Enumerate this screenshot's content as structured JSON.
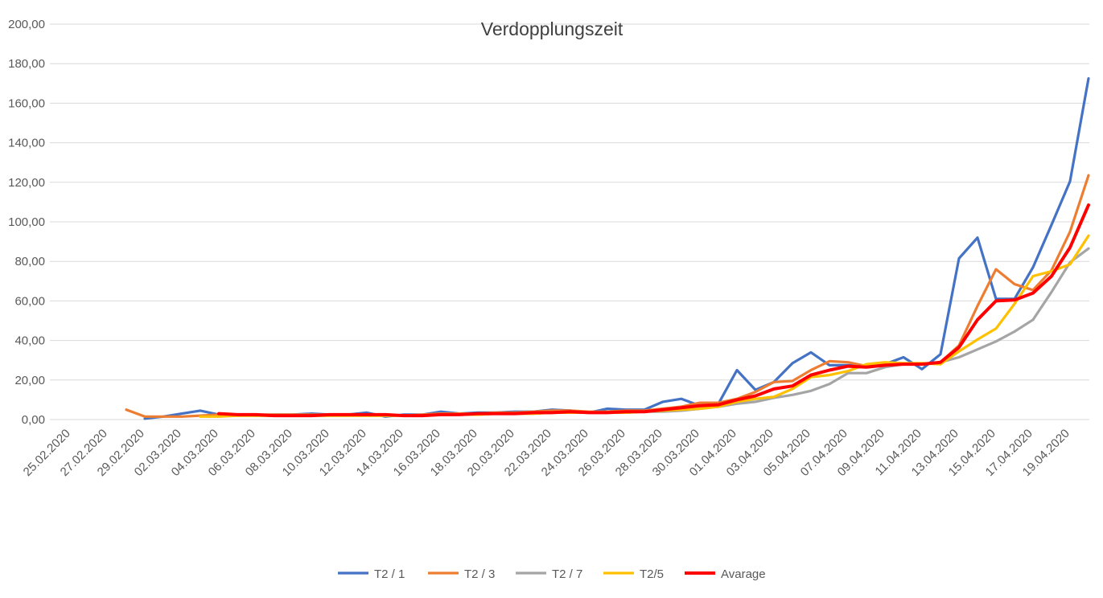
{
  "chart_data": {
    "type": "line",
    "title": "Verdopplungszeit",
    "xlabel": "",
    "ylabel": "",
    "ylim": [
      0,
      200
    ],
    "ytick_step": 20,
    "ytick_labels": [
      "0,00",
      "20,00",
      "40,00",
      "60,00",
      "80,00",
      "100,00",
      "120,00",
      "140,00",
      "160,00",
      "180,00",
      "200,00"
    ],
    "grid": true,
    "legend_position": "bottom",
    "x_tick_labels": [
      "25.02.2020",
      "27.02.2020",
      "29.02.2020",
      "02.03.2020",
      "04.03.2020",
      "06.03.2020",
      "08.03.2020",
      "10.03.2020",
      "12.03.2020",
      "14.03.2020",
      "16.03.2020",
      "18.03.2020",
      "20.03.2020",
      "22.03.2020",
      "24.03.2020",
      "26.03.2020",
      "28.03.2020",
      "30.03.2020",
      "01.04.2020",
      "03.04.2020",
      "05.04.2020",
      "07.04.2020",
      "09.04.2020",
      "11.04.2020",
      "13.04.2020",
      "15.04.2020",
      "17.04.2020",
      "19.04.2020"
    ],
    "x": [
      "25.02.2020",
      "26.02.2020",
      "27.02.2020",
      "28.02.2020",
      "29.02.2020",
      "01.03.2020",
      "02.03.2020",
      "03.03.2020",
      "04.03.2020",
      "05.03.2020",
      "06.03.2020",
      "07.03.2020",
      "08.03.2020",
      "09.03.2020",
      "10.03.2020",
      "11.03.2020",
      "12.03.2020",
      "13.03.2020",
      "14.03.2020",
      "15.03.2020",
      "16.03.2020",
      "17.03.2020",
      "18.03.2020",
      "19.03.2020",
      "20.03.2020",
      "21.03.2020",
      "22.03.2020",
      "23.03.2020",
      "24.03.2020",
      "25.03.2020",
      "26.03.2020",
      "27.03.2020",
      "28.03.2020",
      "29.03.2020",
      "30.03.2020",
      "31.03.2020",
      "01.04.2020",
      "02.04.2020",
      "03.04.2020",
      "04.04.2020",
      "05.04.2020",
      "06.04.2020",
      "07.04.2020",
      "08.04.2020",
      "09.04.2020",
      "10.04.2020",
      "11.04.2020",
      "12.04.2020",
      "13.04.2020",
      "14.04.2020",
      "15.04.2020",
      "16.04.2020",
      "17.04.2020",
      "18.04.2020",
      "19.04.2020",
      "20.04.2020"
    ],
    "series": [
      {
        "name": "T2 / 1",
        "color": "#4472C4",
        "values": [
          null,
          null,
          null,
          null,
          0.5,
          1.5,
          3.0,
          4.5,
          2.5,
          2.5,
          2.0,
          2.5,
          2.5,
          3.0,
          2.5,
          2.5,
          3.5,
          1.5,
          2.5,
          2.5,
          4.0,
          3.0,
          3.5,
          3.5,
          4.0,
          4.0,
          5.0,
          4.5,
          3.5,
          5.5,
          5.0,
          5.0,
          9.0,
          10.5,
          7.0,
          8.0,
          25.0,
          15.0,
          19.0,
          28.5,
          34.0,
          27.5,
          27.5,
          27.0,
          28.0,
          31.5,
          25.5,
          33.0,
          81.5,
          92.0,
          61.0,
          61.0,
          77.0,
          98.5,
          120.5,
          172.5
        ]
      },
      {
        "name": "T2 / 3",
        "color": "#ED7D31",
        "values": [
          null,
          null,
          null,
          5.0,
          1.5,
          1.5,
          1.5,
          2.0,
          2.5,
          2.5,
          2.5,
          2.5,
          2.5,
          2.5,
          2.5,
          2.5,
          2.5,
          2.5,
          2.0,
          2.5,
          3.0,
          3.0,
          3.0,
          3.5,
          3.5,
          4.0,
          4.5,
          4.5,
          4.0,
          4.0,
          4.5,
          4.5,
          5.5,
          6.5,
          8.5,
          8.5,
          10.5,
          14.0,
          19.0,
          19.5,
          25.0,
          29.5,
          29.0,
          27.0,
          28.0,
          28.0,
          28.0,
          29.0,
          37.5,
          57.5,
          76.0,
          68.5,
          65.5,
          75.5,
          95.0,
          123.5
        ]
      },
      {
        "name": "T2 / 7",
        "color": "#A5A5A5",
        "values": [
          null,
          null,
          null,
          null,
          null,
          null,
          null,
          null,
          null,
          2.0,
          2.0,
          2.0,
          2.0,
          2.0,
          2.0,
          2.0,
          2.0,
          2.0,
          2.0,
          2.0,
          2.5,
          2.5,
          2.5,
          3.0,
          3.0,
          3.0,
          3.5,
          3.5,
          3.5,
          3.5,
          3.5,
          4.0,
          4.0,
          4.5,
          5.5,
          6.5,
          8.0,
          9.0,
          11.0,
          12.5,
          14.5,
          18.0,
          23.5,
          23.5,
          26.5,
          28.0,
          28.0,
          29.0,
          31.5,
          35.5,
          39.5,
          44.5,
          50.5,
          64.5,
          79.5,
          86.5
        ]
      },
      {
        "name": "T2/5",
        "color": "#FFC000",
        "values": [
          null,
          null,
          null,
          null,
          null,
          null,
          null,
          1.5,
          1.5,
          2.0,
          2.0,
          2.0,
          2.0,
          2.0,
          2.0,
          2.0,
          2.0,
          2.0,
          2.0,
          2.0,
          2.5,
          2.5,
          2.5,
          3.0,
          3.0,
          3.0,
          3.5,
          3.5,
          3.5,
          3.5,
          3.5,
          4.0,
          4.5,
          5.0,
          5.5,
          6.5,
          9.0,
          10.5,
          11.5,
          15.5,
          21.5,
          22.5,
          24.5,
          28.0,
          29.0,
          28.5,
          28.5,
          28.0,
          34.5,
          40.5,
          46.0,
          58.5,
          72.5,
          75.0,
          78.5,
          93.0
        ]
      },
      {
        "name": "Avarage",
        "color": "#FF0000",
        "values": [
          null,
          null,
          null,
          null,
          null,
          null,
          null,
          null,
          3.0,
          2.5,
          2.5,
          2.0,
          2.0,
          2.0,
          2.5,
          2.5,
          2.5,
          2.5,
          2.0,
          2.0,
          2.5,
          2.5,
          3.0,
          3.0,
          3.0,
          3.5,
          3.5,
          4.0,
          3.5,
          3.5,
          4.0,
          4.0,
          5.0,
          6.0,
          7.0,
          7.5,
          10.0,
          12.0,
          15.5,
          17.0,
          22.5,
          25.0,
          27.0,
          26.5,
          27.5,
          28.0,
          28.0,
          29.0,
          36.5,
          50.5,
          60.0,
          60.5,
          64.0,
          72.5,
          87.0,
          108.5
        ]
      }
    ]
  }
}
